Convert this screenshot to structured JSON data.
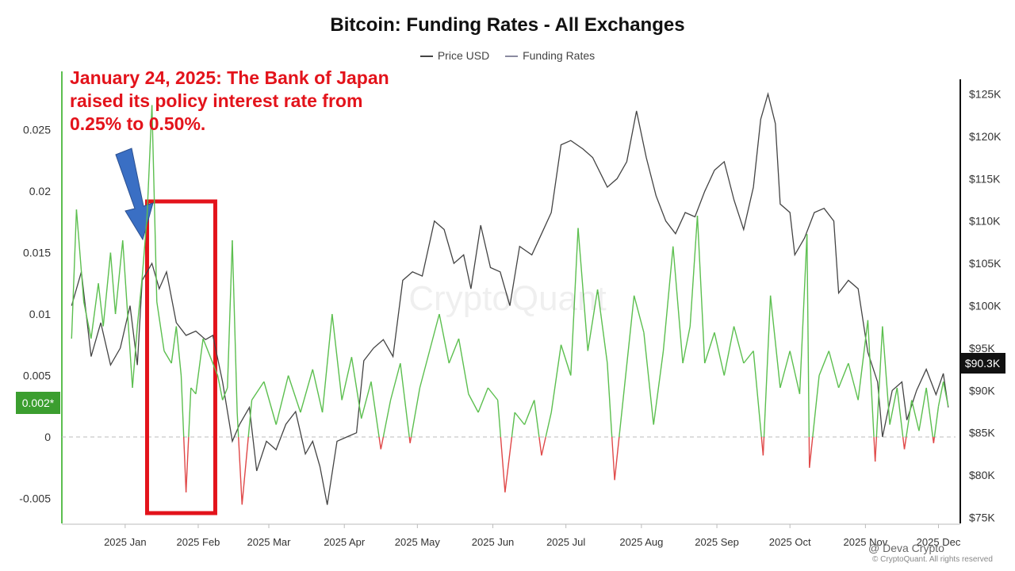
{
  "chart_data": {
    "type": "line",
    "title": "Bitcoin: Funding Rates - All Exchanges",
    "legend": [
      {
        "name": "Price USD",
        "color": "#444444"
      },
      {
        "name": "Funding Rates",
        "color": "#8a8aa0"
      }
    ],
    "x_ticks": [
      "2025 Jan",
      "2025 Feb",
      "2025 Mar",
      "2025 Apr",
      "2025 May",
      "2025 Jun",
      "2025 Jul",
      "2025 Aug",
      "2025 Sep",
      "2025 Oct",
      "2025 Nov",
      "2025 Dec"
    ],
    "y_left_ticks": [
      {
        "label": "0.025",
        "value": 0.025
      },
      {
        "label": "0.02",
        "value": 0.02
      },
      {
        "label": "0.015",
        "value": 0.015
      },
      {
        "label": "0.01",
        "value": 0.01
      },
      {
        "label": "0.005",
        "value": 0.005
      },
      {
        "label": "0",
        "value": 0
      },
      {
        "label": "-0.005",
        "value": -0.005
      }
    ],
    "y_right_ticks": [
      {
        "label": "$125K",
        "value": 125000
      },
      {
        "label": "$120K",
        "value": 120000
      },
      {
        "label": "$115K",
        "value": 115000
      },
      {
        "label": "$110K",
        "value": 110000
      },
      {
        "label": "$105K",
        "value": 105000
      },
      {
        "label": "$100K",
        "value": 100000
      },
      {
        "label": "$95K",
        "value": 95000
      },
      {
        "label": "$90K",
        "value": 90000
      },
      {
        "label": "$85K",
        "value": 85000
      },
      {
        "label": "$80K",
        "value": 80000
      },
      {
        "label": "$75K",
        "value": 75000
      }
    ],
    "price_series": {
      "name": "Price USD",
      "color": "#444444",
      "points": [
        [
          "2024-12-24",
          100000
        ],
        [
          "2024-12-28",
          104000
        ],
        [
          "2025-01-01",
          94000
        ],
        [
          "2025-01-05",
          98000
        ],
        [
          "2025-01-09",
          93000
        ],
        [
          "2025-01-13",
          95000
        ],
        [
          "2025-01-17",
          100000
        ],
        [
          "2025-01-20",
          93000
        ],
        [
          "2025-01-22",
          103000
        ],
        [
          "2025-01-26",
          105000
        ],
        [
          "2025-01-29",
          102000
        ],
        [
          "2025-02-01",
          104000
        ],
        [
          "2025-02-05",
          98000
        ],
        [
          "2025-02-09",
          96500
        ],
        [
          "2025-02-13",
          97000
        ],
        [
          "2025-02-17",
          96000
        ],
        [
          "2025-02-20",
          96500
        ],
        [
          "2025-02-24",
          91000
        ],
        [
          "2025-02-28",
          84000
        ],
        [
          "2025-03-03",
          86000
        ],
        [
          "2025-03-07",
          88000
        ],
        [
          "2025-03-10",
          80500
        ],
        [
          "2025-03-14",
          84000
        ],
        [
          "2025-03-18",
          83000
        ],
        [
          "2025-03-22",
          86000
        ],
        [
          "2025-03-26",
          87500
        ],
        [
          "2025-03-30",
          82500
        ],
        [
          "2025-04-02",
          84000
        ],
        [
          "2025-04-05",
          81000
        ],
        [
          "2025-04-08",
          76500
        ],
        [
          "2025-04-12",
          84000
        ],
        [
          "2025-04-16",
          84500
        ],
        [
          "2025-04-20",
          85000
        ],
        [
          "2025-04-23",
          93500
        ],
        [
          "2025-04-27",
          95000
        ],
        [
          "2025-05-01",
          96000
        ],
        [
          "2025-05-05",
          94000
        ],
        [
          "2025-05-09",
          103000
        ],
        [
          "2025-05-13",
          104000
        ],
        [
          "2025-05-17",
          103500
        ],
        [
          "2025-05-22",
          110000
        ],
        [
          "2025-05-26",
          109000
        ],
        [
          "2025-05-30",
          105000
        ],
        [
          "2025-06-03",
          106000
        ],
        [
          "2025-06-06",
          102000
        ],
        [
          "2025-06-10",
          109500
        ],
        [
          "2025-06-14",
          104500
        ],
        [
          "2025-06-18",
          104000
        ],
        [
          "2025-06-22",
          100000
        ],
        [
          "2025-06-26",
          107000
        ],
        [
          "2025-07-01",
          106000
        ],
        [
          "2025-07-05",
          108500
        ],
        [
          "2025-07-09",
          111000
        ],
        [
          "2025-07-13",
          119000
        ],
        [
          "2025-07-17",
          119500
        ],
        [
          "2025-07-22",
          118500
        ],
        [
          "2025-07-26",
          117500
        ],
        [
          "2025-08-01",
          114000
        ],
        [
          "2025-08-05",
          115000
        ],
        [
          "2025-08-09",
          117000
        ],
        [
          "2025-08-13",
          123000
        ],
        [
          "2025-08-17",
          117500
        ],
        [
          "2025-08-21",
          113000
        ],
        [
          "2025-08-25",
          110000
        ],
        [
          "2025-08-29",
          108500
        ],
        [
          "2025-09-02",
          111000
        ],
        [
          "2025-09-06",
          110500
        ],
        [
          "2025-09-10",
          113500
        ],
        [
          "2025-09-14",
          116000
        ],
        [
          "2025-09-18",
          117000
        ],
        [
          "2025-09-22",
          112500
        ],
        [
          "2025-09-26",
          109000
        ],
        [
          "2025-09-30",
          114000
        ],
        [
          "2025-10-03",
          122000
        ],
        [
          "2025-10-06",
          125000
        ],
        [
          "2025-10-09",
          121500
        ],
        [
          "2025-10-11",
          112000
        ],
        [
          "2025-10-15",
          111000
        ],
        [
          "2025-10-17",
          106000
        ],
        [
          "2025-10-21",
          108000
        ],
        [
          "2025-10-25",
          111000
        ],
        [
          "2025-10-29",
          111500
        ],
        [
          "2025-11-02",
          110000
        ],
        [
          "2025-11-04",
          101500
        ],
        [
          "2025-11-08",
          103000
        ],
        [
          "2025-11-12",
          102000
        ],
        [
          "2025-11-16",
          94500
        ],
        [
          "2025-11-20",
          91000
        ],
        [
          "2025-11-22",
          84500
        ],
        [
          "2025-11-26",
          90000
        ],
        [
          "2025-11-30",
          91000
        ],
        [
          "2025-12-02",
          86500
        ],
        [
          "2025-12-06",
          90000
        ],
        [
          "2025-12-10",
          92500
        ],
        [
          "2025-12-14",
          89500
        ],
        [
          "2025-12-17",
          92000
        ],
        [
          "2025-12-19",
          88000
        ]
      ]
    },
    "funding_series": {
      "name": "Funding Rates",
      "positive_color": "#5cbf4f",
      "negative_color": "#e04848",
      "points": [
        [
          "2024-12-24",
          0.008
        ],
        [
          "2024-12-26",
          0.0185
        ],
        [
          "2024-12-29",
          0.011
        ],
        [
          "2025-01-01",
          0.008
        ],
        [
          "2025-01-04",
          0.0125
        ],
        [
          "2025-01-06",
          0.009
        ],
        [
          "2025-01-09",
          0.015
        ],
        [
          "2025-01-11",
          0.01
        ],
        [
          "2025-01-14",
          0.016
        ],
        [
          "2025-01-16",
          0.01
        ],
        [
          "2025-01-18",
          0.004
        ],
        [
          "2025-01-20",
          0.009
        ],
        [
          "2025-01-22",
          0.013
        ],
        [
          "2025-01-24",
          0.018
        ],
        [
          "2025-01-26",
          0.027
        ],
        [
          "2025-01-28",
          0.011
        ],
        [
          "2025-01-31",
          0.007
        ],
        [
          "2025-02-03",
          0.006
        ],
        [
          "2025-02-05",
          0.009
        ],
        [
          "2025-02-07",
          0.005
        ],
        [
          "2025-02-09",
          -0.0045
        ],
        [
          "2025-02-11",
          0.004
        ],
        [
          "2025-02-13",
          0.0035
        ],
        [
          "2025-02-16",
          0.008
        ],
        [
          "2025-02-19",
          0.0065
        ],
        [
          "2025-02-22",
          0.005
        ],
        [
          "2025-02-24",
          0.003
        ],
        [
          "2025-02-26",
          0.004
        ],
        [
          "2025-02-28",
          0.016
        ],
        [
          "2025-03-02",
          0.002
        ],
        [
          "2025-03-04",
          -0.0055
        ],
        [
          "2025-03-08",
          0.003
        ],
        [
          "2025-03-13",
          0.0045
        ],
        [
          "2025-03-18",
          0.001
        ],
        [
          "2025-03-23",
          0.005
        ],
        [
          "2025-03-28",
          0.002
        ],
        [
          "2025-04-02",
          0.0055
        ],
        [
          "2025-04-06",
          0.002
        ],
        [
          "2025-04-10",
          0.01
        ],
        [
          "2025-04-14",
          0.003
        ],
        [
          "2025-04-18",
          0.0065
        ],
        [
          "2025-04-22",
          0.0015
        ],
        [
          "2025-04-26",
          0.0045
        ],
        [
          "2025-04-30",
          -0.001
        ],
        [
          "2025-05-04",
          0.003
        ],
        [
          "2025-05-08",
          0.006
        ],
        [
          "2025-05-12",
          -0.0005
        ],
        [
          "2025-05-16",
          0.004
        ],
        [
          "2025-05-20",
          0.007
        ],
        [
          "2025-05-24",
          0.01
        ],
        [
          "2025-05-28",
          0.006
        ],
        [
          "2025-06-01",
          0.008
        ],
        [
          "2025-06-05",
          0.0035
        ],
        [
          "2025-06-09",
          0.002
        ],
        [
          "2025-06-13",
          0.004
        ],
        [
          "2025-06-17",
          0.003
        ],
        [
          "2025-06-20",
          -0.0045
        ],
        [
          "2025-06-24",
          0.002
        ],
        [
          "2025-06-28",
          0.001
        ],
        [
          "2025-07-02",
          0.003
        ],
        [
          "2025-07-05",
          -0.0015
        ],
        [
          "2025-07-09",
          0.002
        ],
        [
          "2025-07-13",
          0.0075
        ],
        [
          "2025-07-17",
          0.005
        ],
        [
          "2025-07-20",
          0.017
        ],
        [
          "2025-07-24",
          0.007
        ],
        [
          "2025-07-28",
          0.012
        ],
        [
          "2025-08-01",
          0.006
        ],
        [
          "2025-08-04",
          -0.0035
        ],
        [
          "2025-08-08",
          0.004
        ],
        [
          "2025-08-12",
          0.0115
        ],
        [
          "2025-08-16",
          0.0085
        ],
        [
          "2025-08-20",
          0.001
        ],
        [
          "2025-08-24",
          0.007
        ],
        [
          "2025-08-28",
          0.0155
        ],
        [
          "2025-09-01",
          0.006
        ],
        [
          "2025-09-04",
          0.009
        ],
        [
          "2025-09-07",
          0.018
        ],
        [
          "2025-09-10",
          0.006
        ],
        [
          "2025-09-14",
          0.0085
        ],
        [
          "2025-09-18",
          0.005
        ],
        [
          "2025-09-22",
          0.009
        ],
        [
          "2025-09-26",
          0.006
        ],
        [
          "2025-09-30",
          0.007
        ],
        [
          "2025-10-04",
          -0.0015
        ],
        [
          "2025-10-07",
          0.0115
        ],
        [
          "2025-10-11",
          0.004
        ],
        [
          "2025-10-15",
          0.007
        ],
        [
          "2025-10-19",
          0.0035
        ],
        [
          "2025-10-22",
          0.0165
        ],
        [
          "2025-10-23",
          -0.0025
        ],
        [
          "2025-10-27",
          0.005
        ],
        [
          "2025-10-31",
          0.007
        ],
        [
          "2025-11-04",
          0.004
        ],
        [
          "2025-11-08",
          0.006
        ],
        [
          "2025-11-12",
          0.003
        ],
        [
          "2025-11-16",
          0.0095
        ],
        [
          "2025-11-19",
          -0.002
        ],
        [
          "2025-11-22",
          0.009
        ],
        [
          "2025-11-25",
          0.001
        ],
        [
          "2025-11-28",
          0.004
        ],
        [
          "2025-12-01",
          -0.001
        ],
        [
          "2025-12-04",
          0.003
        ],
        [
          "2025-12-07",
          0.0005
        ],
        [
          "2025-12-10",
          0.004
        ],
        [
          "2025-12-13",
          -0.0005
        ],
        [
          "2025-12-15",
          0.0025
        ],
        [
          "2025-12-17",
          0.0045
        ],
        [
          "2025-12-19",
          0.0025
        ]
      ]
    },
    "zero_line": true,
    "grid": false,
    "legend_position": "top-center"
  },
  "annotation": {
    "text": "January 24, 2025: The Bank of Japan raised its policy interest rate from 0.25% to 0.50%.",
    "color": "#e3131b",
    "arrow_color": "#3a6fc4",
    "highlight_box_color": "#e3131b",
    "highlight_range": [
      "2025-01-24",
      "2025-02-21"
    ]
  },
  "badges": {
    "price_current": "$90.3K",
    "funding_current": "0.002*"
  },
  "watermark": "CryptoQuant",
  "footer_note": "@ Deva Crypto",
  "copyright": "© CryptoQuant. All rights reserved"
}
